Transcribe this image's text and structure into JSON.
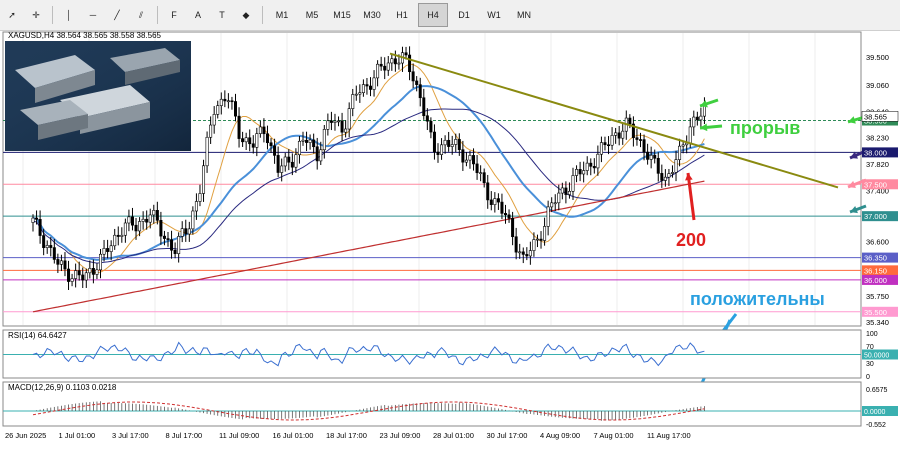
{
  "toolbar": {
    "tools": [
      {
        "name": "cursor-icon",
        "glyph": "➚"
      },
      {
        "name": "crosshair-icon",
        "glyph": "✛"
      },
      {
        "name": "vertical-line-icon",
        "glyph": "│"
      },
      {
        "name": "horizontal-line-icon",
        "glyph": "─"
      },
      {
        "name": "trendline-icon",
        "glyph": "╱"
      },
      {
        "name": "channel-icon",
        "glyph": "⫽"
      },
      {
        "name": "fibonacci-icon",
        "glyph": "F"
      },
      {
        "name": "text-icon",
        "glyph": "A"
      },
      {
        "name": "label-icon",
        "glyph": "T"
      },
      {
        "name": "shapes-icon",
        "glyph": "◆"
      }
    ],
    "timeframes": [
      "M1",
      "M5",
      "M15",
      "M30",
      "H1",
      "H4",
      "D1",
      "W1",
      "MN"
    ],
    "active_timeframe": "H4"
  },
  "chart": {
    "header": "XAGUSD,H4  38.564 38.565 38.558 38.565",
    "price_ticks": [
      "39.500",
      "39.060",
      "38.640",
      "38.230",
      "37.820",
      "37.400",
      "36.990",
      "36.600",
      "36.150",
      "35.750",
      "35.340"
    ],
    "price_labels": [
      {
        "text": "38.500",
        "color": "#2e8b57"
      },
      {
        "text": "38.000",
        "color": "#1a1a6e"
      },
      {
        "text": "37.500",
        "color": "#ff8aa0"
      },
      {
        "text": "37.000",
        "color": "#2f8f8f"
      },
      {
        "text": "36.350",
        "color": "#5b5fc7"
      },
      {
        "text": "36.150",
        "color": "#ff6a3d"
      },
      {
        "text": "36.000",
        "color": "#c030c0"
      },
      {
        "text": "35.500",
        "color": "#ff9ad0"
      }
    ],
    "time_labels": [
      "26 Jun 2025",
      "1 Jul 01:00",
      "3 Jul 17:00",
      "8 Jul 17:00",
      "11 Jul 09:00",
      "16 Jul 01:00",
      "18 Jul 17:00",
      "23 Jul 09:00",
      "28 Jul 01:00",
      "30 Jul 17:00",
      "4 Aug 09:00",
      "7 Aug 01:00",
      "11 Aug 17:00"
    ],
    "annotations": {
      "breakout": "прорыв",
      "ma200": "200",
      "positive": "положительны"
    }
  },
  "rsi": {
    "header": "RSI(14) 64.6427",
    "ticks": [
      "100",
      "70",
      "30",
      "0"
    ],
    "level_label": "50.0000"
  },
  "macd": {
    "header": "MACD(12,26,9) 0.1103 0.0218",
    "ticks": [
      "0.6575",
      "-0.552"
    ],
    "zero_label": "0.0000"
  },
  "chart_data": {
    "type": "candlestick",
    "symbol": "XAGUSD",
    "timeframe": "H4",
    "ylim": [
      35.34,
      39.7
    ],
    "last_price": 38.565,
    "series_points": [
      36.9,
      36.6,
      36.2,
      36.1,
      36.0,
      36.3,
      36.5,
      36.9,
      36.8,
      37.1,
      36.7,
      36.5,
      36.8,
      37.5,
      38.7,
      38.9,
      38.3,
      38.1,
      38.4,
      37.7,
      37.9,
      38.2,
      38.0,
      38.5,
      38.4,
      38.9,
      39.1,
      39.3,
      39.5,
      39.4,
      38.9,
      38.0,
      38.2,
      38.0,
      37.9,
      37.4,
      37.2,
      36.8,
      36.3,
      36.6,
      37.1,
      37.4,
      37.6,
      37.8,
      38.0,
      38.3,
      38.4,
      38.2,
      37.8,
      37.6,
      37.9,
      38.5,
      38.6
    ],
    "horizontal_levels": [
      38.5,
      38.0,
      37.5,
      37.0,
      36.35,
      36.15,
      36.0,
      35.5
    ]
  }
}
